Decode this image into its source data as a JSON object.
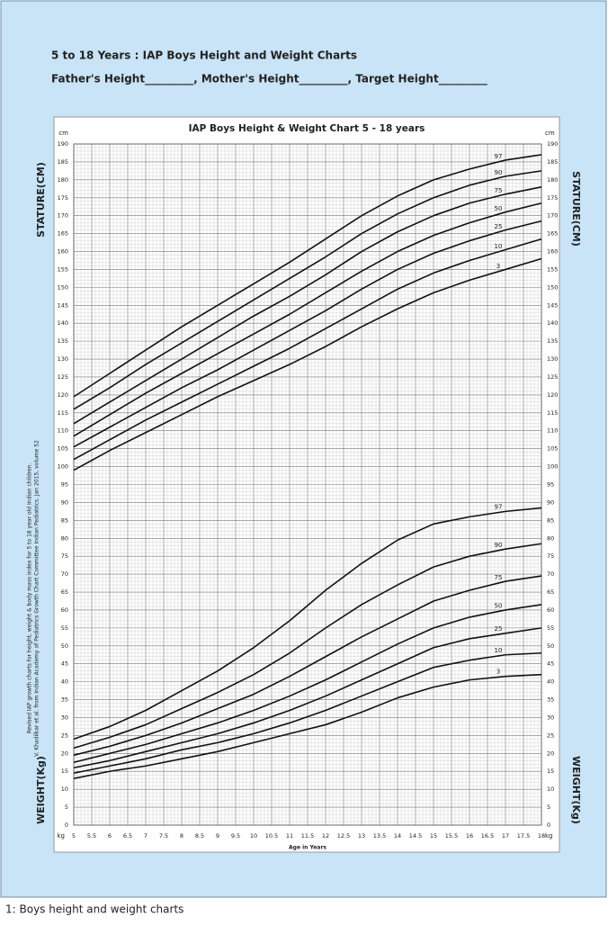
{
  "header": {
    "title": "5 to 18 Years : IAP Boys Height and Weight Charts",
    "fields": "Father's Height_________,   Mother's Height_________,   Target Height_________"
  },
  "caption": "1: Boys height and weight charts",
  "chart_data": {
    "type": "line",
    "title": "IAP Boys Height & Weight Chart 5 - 18 years",
    "note": [
      "Revised IAP growth charts for height, weight & body mass index for 5 to 18 year old Indian children.",
      "V. Khadilkar et al. from Indian Academy of Pediatrics Growth Chart Committee Indian Pediatrics. Jan 2015, volume 52"
    ],
    "x_label": "Age in Years",
    "y_label_top": "STATURE(CM)",
    "y_label_bottom": "WEIGHT(Kg)",
    "unit_top": "cm",
    "unit_bottom": "kg",
    "x": [
      5,
      6,
      7,
      8,
      9,
      10,
      11,
      12,
      13,
      14,
      15,
      16,
      17,
      18
    ],
    "xlim": [
      5,
      18
    ],
    "xticks": [
      5,
      5.5,
      6,
      6.5,
      7,
      7.5,
      8,
      8.5,
      9,
      9.5,
      10,
      10.5,
      11,
      11.5,
      12,
      12.5,
      13,
      13.5,
      14,
      14.5,
      15,
      15.5,
      16,
      16.5,
      17,
      17.5,
      18
    ],
    "ylim": [
      0,
      190
    ],
    "yticks": [
      0,
      5,
      10,
      15,
      20,
      25,
      30,
      35,
      40,
      45,
      50,
      55,
      60,
      65,
      70,
      75,
      80,
      85,
      90,
      95,
      100,
      105,
      110,
      115,
      120,
      125,
      130,
      135,
      140,
      145,
      150,
      155,
      160,
      165,
      170,
      175,
      180,
      185,
      190
    ],
    "grid": true,
    "series": [
      {
        "name": "97",
        "color": "#111111",
        "values": [
          119.5,
          126,
          132.5,
          139,
          145,
          151,
          157,
          163.5,
          170,
          175.5,
          180,
          183,
          185.5,
          187
        ]
      },
      {
        "name": "90",
        "color": "#111111",
        "values": [
          116,
          122,
          128.5,
          134.5,
          140.5,
          146.5,
          152.5,
          158.5,
          165,
          170.5,
          175,
          178.5,
          181,
          182.5
        ]
      },
      {
        "name": "75",
        "color": "#111111",
        "values": [
          112,
          118,
          124,
          130,
          136,
          142,
          147.5,
          153.5,
          160,
          165.5,
          170,
          173.5,
          176,
          178
        ]
      },
      {
        "name": "50",
        "color": "#111111",
        "values": [
          108.5,
          114.5,
          120.5,
          126,
          131.5,
          137,
          142.5,
          148.5,
          154.5,
          160,
          164.5,
          168,
          171,
          173.5
        ]
      },
      {
        "name": "25",
        "color": "#111111",
        "values": [
          105.5,
          111,
          116.5,
          122,
          127,
          132.5,
          138,
          143.5,
          149.5,
          155,
          159.5,
          163,
          166,
          168.5
        ]
      },
      {
        "name": "10",
        "color": "#111111",
        "values": [
          102,
          107.5,
          113,
          118,
          123,
          128,
          133,
          138.5,
          144,
          149.5,
          154,
          157.5,
          160.5,
          163.5
        ]
      },
      {
        "name": "3",
        "color": "#111111",
        "values": [
          99,
          104.5,
          109.5,
          114.5,
          119.5,
          124,
          128.5,
          133.5,
          139,
          144,
          148.5,
          152,
          155,
          158
        ]
      },
      {
        "name": "97",
        "color": "#111111",
        "values": [
          24,
          27.5,
          32,
          37.5,
          43,
          49.5,
          57,
          65.5,
          73,
          79.5,
          84,
          86,
          87.5,
          88.5
        ]
      },
      {
        "name": "90",
        "color": "#111111",
        "values": [
          21.5,
          24.5,
          28,
          32.5,
          37,
          42,
          48,
          55,
          61.5,
          67,
          72,
          75,
          77,
          78.5
        ]
      },
      {
        "name": "75",
        "color": "#111111",
        "values": [
          19.5,
          22,
          25,
          28.5,
          32.5,
          36.5,
          41.5,
          47,
          52.5,
          57.5,
          62.5,
          65.5,
          68,
          69.5
        ]
      },
      {
        "name": "50",
        "color": "#111111",
        "values": [
          17.5,
          20,
          22.5,
          25.5,
          28.5,
          32,
          36,
          40.5,
          45.5,
          50.5,
          55,
          58,
          60,
          61.5
        ]
      },
      {
        "name": "25",
        "color": "#111111",
        "values": [
          16,
          18,
          20.5,
          23,
          25.5,
          28.5,
          32,
          36,
          40.5,
          45,
          49.5,
          52,
          53.5,
          55
        ]
      },
      {
        "name": "10",
        "color": "#111111",
        "values": [
          14.5,
          16.5,
          18.5,
          21,
          23,
          25.5,
          28.5,
          32,
          36,
          40,
          44,
          46,
          47.5,
          48
        ]
      },
      {
        "name": "3",
        "color": "#111111",
        "values": [
          13,
          15,
          16.5,
          18.5,
          20.5,
          23,
          25.5,
          28,
          31.5,
          35.5,
          38.5,
          40.5,
          41.5,
          42
        ]
      }
    ]
  }
}
